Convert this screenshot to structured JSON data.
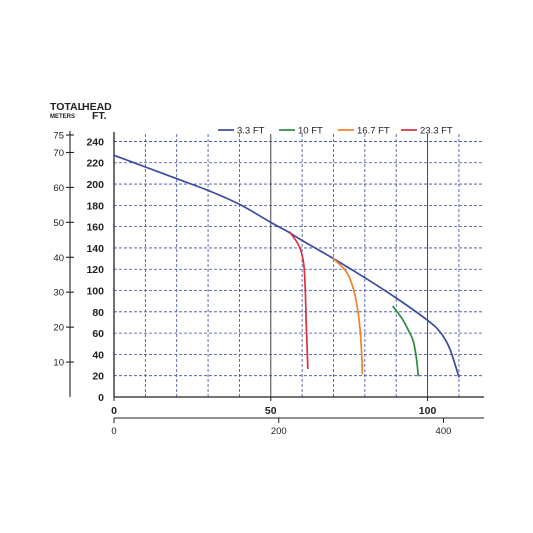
{
  "chart_data": {
    "type": "line",
    "header": {
      "title_left": "TOTAL",
      "title_right": "HEAD",
      "sub_left": "METERS",
      "sub_right": "FT."
    },
    "y_ft": {
      "ticks": [
        0,
        20,
        40,
        60,
        80,
        100,
        120,
        140,
        160,
        180,
        200,
        220,
        240
      ],
      "labels": [
        "0",
        "20",
        "40",
        "60",
        "80",
        "100",
        "120",
        "140",
        "160",
        "180",
        "200",
        "220",
        "240"
      ],
      "range": [
        0,
        247
      ]
    },
    "y_m": {
      "ticks": [
        10,
        20,
        30,
        40,
        50,
        60,
        70,
        75
      ],
      "labels": [
        "10",
        "20",
        "30",
        "40",
        "50",
        "60",
        "70",
        "75"
      ]
    },
    "x_top": {
      "ticks": [
        0,
        50,
        100
      ],
      "labels": [
        "0",
        "50",
        "100"
      ],
      "range": [
        0,
        118
      ]
    },
    "x_bottom": {
      "ticks": [
        0,
        200,
        400
      ],
      "labels": [
        "0",
        "200",
        "400"
      ]
    },
    "grid": true,
    "legend_position": "top-right",
    "series": [
      {
        "name": "3.3 FT",
        "color": "#3b4a9e",
        "points": [
          [
            0,
            227
          ],
          [
            10,
            216
          ],
          [
            20,
            205
          ],
          [
            30,
            194
          ],
          [
            40,
            181
          ],
          [
            50,
            164
          ],
          [
            55,
            156
          ],
          [
            60,
            147
          ],
          [
            70,
            130
          ],
          [
            80,
            112
          ],
          [
            90,
            93
          ],
          [
            100,
            72
          ],
          [
            104,
            61
          ],
          [
            107,
            46
          ],
          [
            110,
            19
          ]
        ]
      },
      {
        "name": "10 FT",
        "color": "#2e8b3e",
        "points": [
          [
            89,
            85
          ],
          [
            92,
            73
          ],
          [
            94,
            62
          ],
          [
            95.5,
            52
          ],
          [
            96.5,
            35
          ],
          [
            97,
            20
          ]
        ]
      },
      {
        "name": "16.7 FT",
        "color": "#f07f2a",
        "points": [
          [
            70,
            130
          ],
          [
            74,
            118
          ],
          [
            76,
            105
          ],
          [
            77.5,
            86
          ],
          [
            78.5,
            63
          ],
          [
            79,
            40
          ],
          [
            79.2,
            22
          ]
        ]
      },
      {
        "name": "23.3 FT",
        "color": "#d8323a",
        "points": [
          [
            56,
            155
          ],
          [
            59,
            142
          ],
          [
            60.5,
            125
          ],
          [
            61,
            100
          ],
          [
            61.3,
            70
          ],
          [
            61.6,
            45
          ],
          [
            61.8,
            27
          ]
        ]
      }
    ]
  }
}
